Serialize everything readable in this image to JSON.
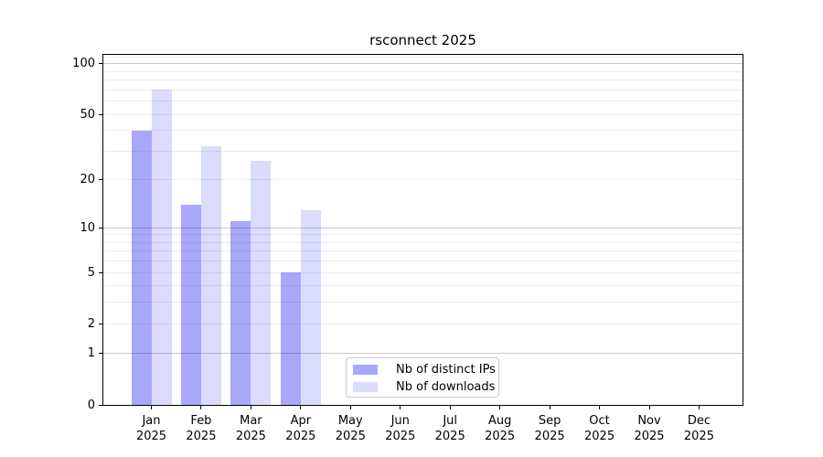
{
  "chart_data": {
    "type": "bar",
    "title": "rsconnect 2025",
    "x": {
      "categories": [
        "Jan",
        "Feb",
        "Mar",
        "Apr",
        "May",
        "Jun",
        "Jul",
        "Aug",
        "Sep",
        "Oct",
        "Nov",
        "Dec"
      ],
      "year_label": "2025"
    },
    "series": [
      {
        "name": "Nb of distinct IPs",
        "color": "rgba(0,0,240,0.34)",
        "color_hex": "#a9a9f8",
        "values": [
          40,
          14,
          11,
          5,
          null,
          null,
          null,
          null,
          null,
          null,
          null,
          null
        ]
      },
      {
        "name": "Nb of downloads",
        "color": "rgba(0,0,240,0.14)",
        "color_hex": "#dcdcfa",
        "values": [
          70,
          32,
          26,
          13,
          null,
          null,
          null,
          null,
          null,
          null,
          null,
          null
        ]
      }
    ],
    "y_axis": {
      "scale": "log1p",
      "ticks": [
        0,
        1,
        2,
        5,
        10,
        20,
        50,
        100
      ],
      "ylim": [
        0,
        113
      ],
      "major_gridlines": [
        1,
        10,
        100
      ],
      "minor_gridlines": [
        2,
        3,
        4,
        5,
        6,
        7,
        8,
        9,
        20,
        30,
        40,
        50,
        60,
        70,
        80,
        90,
        110
      ],
      "grid": "on"
    },
    "legend_position": "lower center",
    "colors": {
      "grid_major": "#c9c9c9",
      "grid_minor": "#ececec",
      "spine": "#000000",
      "text": "#000000",
      "background": "#ffffff",
      "legend_border": "#c9c9c9"
    }
  }
}
